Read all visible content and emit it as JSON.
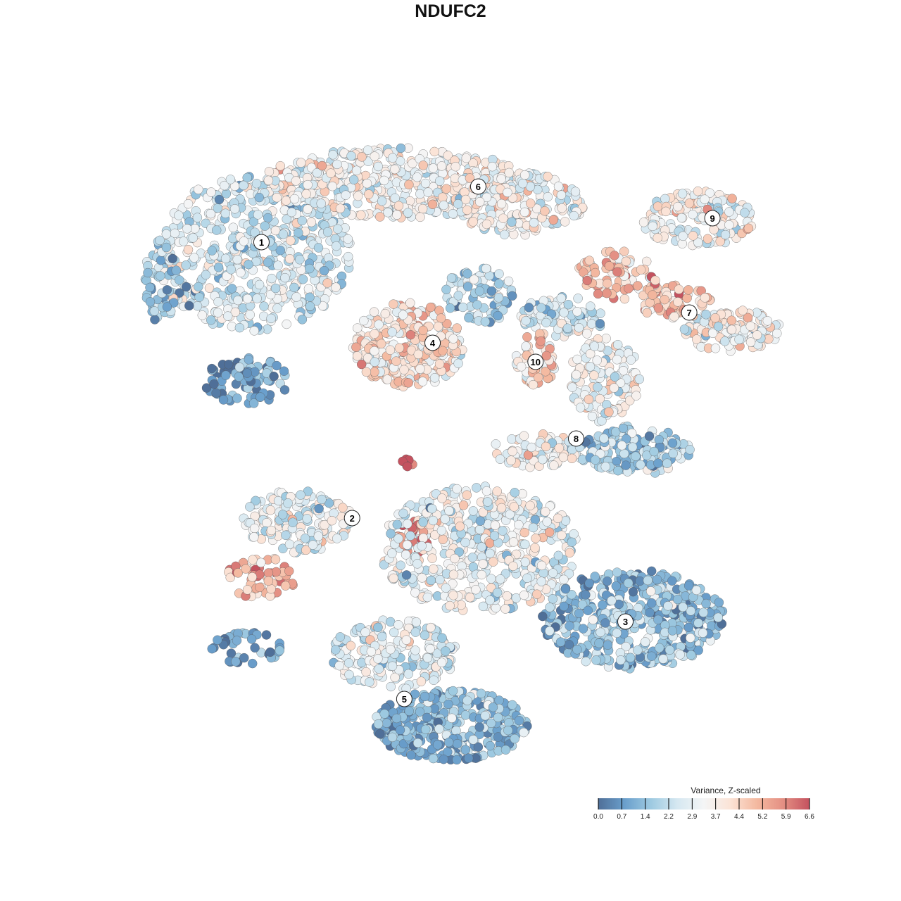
{
  "chart_data": {
    "type": "scatter",
    "title": "NDUFC2",
    "xlabel": "",
    "ylabel": "",
    "xlim": [
      -45,
      45
    ],
    "ylim": [
      -45,
      45
    ],
    "grid": false,
    "note": "Point clouds summarized as clusters of points (center, spread in t-SNE units, count, mean scaled value)",
    "point_groups": [
      {
        "cx": -29.6,
        "cy": 27.7,
        "sx": 13.6,
        "sy": 11,
        "n": 520,
        "mean": 2.6
      },
      {
        "cx": -30.6,
        "cy": 9.7,
        "sx": 5.8,
        "sy": 3.5,
        "n": 80,
        "mean": 1.0
      },
      {
        "cx": -42.2,
        "cy": 23.7,
        "sx": 2.4,
        "sy": 6,
        "n": 60,
        "mean": 1.6
      },
      {
        "cx": -10.2,
        "cy": 37.7,
        "sx": 18.4,
        "sy": 5,
        "n": 500,
        "mean": 3.3
      },
      {
        "cx": 7.3,
        "cy": 34.7,
        "sx": 8.7,
        "sy": 4.5,
        "n": 200,
        "mean": 3.5
      },
      {
        "cx": 20.9,
        "cy": 24.7,
        "sx": 5.8,
        "sy": 3.5,
        "n": 80,
        "mean": 4.6
      },
      {
        "cx": 28.6,
        "cy": 20.7,
        "sx": 4.9,
        "sy": 2.5,
        "n": 60,
        "mean": 4.8
      },
      {
        "cx": 36.4,
        "cy": 16.7,
        "sx": 6.8,
        "sy": 3,
        "n": 120,
        "mean": 3.4
      },
      {
        "cx": 31.6,
        "cy": 32.7,
        "sx": 7.8,
        "sy": 4,
        "n": 150,
        "mean": 3.2
      },
      {
        "cx": -8.3,
        "cy": 14.7,
        "sx": 7.8,
        "sy": 6,
        "n": 300,
        "mean": 4.0
      },
      {
        "cx": 1.5,
        "cy": 21.7,
        "sx": 4.9,
        "sy": 4,
        "n": 80,
        "mean": 2.0
      },
      {
        "cx": 9.2,
        "cy": 12.7,
        "sx": 2.9,
        "sy": 4,
        "n": 60,
        "mean": 4.3
      },
      {
        "cx": 13.1,
        "cy": 18.7,
        "sx": 5.8,
        "sy": 3,
        "n": 90,
        "mean": 2.5
      },
      {
        "cx": 18.9,
        "cy": 9.7,
        "sx": 4.9,
        "sy": 6,
        "n": 120,
        "mean": 3.3
      },
      {
        "cx": 22.8,
        "cy": -0.3,
        "sx": 7.8,
        "sy": 3.5,
        "n": 150,
        "mean": 1.8
      },
      {
        "cx": 9.2,
        "cy": -0.3,
        "sx": 5.8,
        "sy": 2.5,
        "n": 80,
        "mean": 3.2
      },
      {
        "cx": -23.8,
        "cy": -10.3,
        "sx": 7.8,
        "sy": 4.5,
        "n": 150,
        "mean": 2.9
      },
      {
        "cx": -28.6,
        "cy": -18.3,
        "sx": 4.9,
        "sy": 3,
        "n": 60,
        "mean": 5.0
      },
      {
        "cx": -30.6,
        "cy": -28.3,
        "sx": 4.9,
        "sy": 2.5,
        "n": 40,
        "mean": 1.0
      },
      {
        "cx": 1.5,
        "cy": -14.3,
        "sx": 13.6,
        "sy": 9,
        "n": 500,
        "mean": 3.0
      },
      {
        "cx": -7.3,
        "cy": -12.3,
        "sx": 2.9,
        "sy": 2.5,
        "n": 25,
        "mean": 5.8
      },
      {
        "cx": 22.8,
        "cy": -24.3,
        "sx": 12.6,
        "sy": 7,
        "n": 450,
        "mean": 1.4
      },
      {
        "cx": -2.4,
        "cy": -39.3,
        "sx": 10.7,
        "sy": 5,
        "n": 350,
        "mean": 1.2
      },
      {
        "cx": -10.2,
        "cy": -29.3,
        "sx": 8.7,
        "sy": 5,
        "n": 200,
        "mean": 2.8
      },
      {
        "cx": -8.3,
        "cy": -2.0,
        "sx": 0.8,
        "sy": 0.6,
        "n": 6,
        "mean": 6.4
      }
    ],
    "cluster_labels": [
      {
        "label": "1",
        "x": -28.5,
        "y": 29.3
      },
      {
        "label": "2",
        "x": -16.0,
        "y": -9.9
      },
      {
        "label": "3",
        "x": 21.7,
        "y": -24.6
      },
      {
        "label": "4",
        "x": -4.9,
        "y": 15.0
      },
      {
        "label": "5",
        "x": -8.8,
        "y": -35.6
      },
      {
        "label": "6",
        "x": 1.4,
        "y": 37.2
      },
      {
        "label": "7",
        "x": 30.5,
        "y": 19.3
      },
      {
        "label": "8",
        "x": 14.9,
        "y": 1.4
      },
      {
        "label": "9",
        "x": 33.7,
        "y": 32.7
      },
      {
        "label": "10",
        "x": 9.3,
        "y": 12.3
      }
    ],
    "legend": {
      "title": "Variance, Z-scaled",
      "placement": "bottom-right",
      "range": [
        0,
        6.6
      ],
      "ticks": [
        "0.0",
        "0.7",
        "1.4",
        "2.2",
        "2.9",
        "3.7",
        "4.4",
        "5.2",
        "5.9",
        "6.6"
      ],
      "colors": [
        "#4f6f98",
        "#6a9fcc",
        "#9ecae1",
        "#d6e8f1",
        "#f4f5f6",
        "#fbe3d6",
        "#f4b9a0",
        "#e48f83",
        "#c4525f"
      ]
    }
  }
}
